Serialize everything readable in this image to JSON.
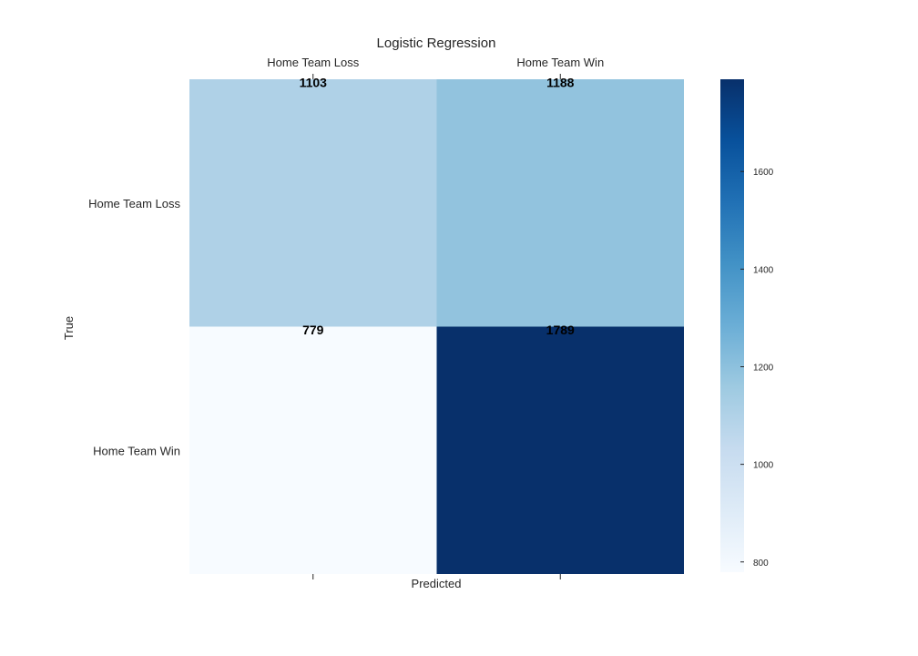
{
  "chart_data": {
    "type": "heatmap",
    "title": "Logistic Regression",
    "xlabel": "Predicted",
    "ylabel": "True",
    "x_categories": [
      "Home Team Loss",
      "Home Team Win"
    ],
    "y_categories": [
      "Home Team Loss",
      "Home Team Win"
    ],
    "values": [
      [
        1103,
        1188
      ],
      [
        779,
        1789
      ]
    ],
    "colormap": "Blues",
    "color_range": [
      779,
      1789
    ],
    "colorbar_ticks": [
      800,
      1000,
      1200,
      1400,
      1600
    ],
    "grid": false,
    "x_tick_position": "top",
    "colorbar_position": "right"
  }
}
